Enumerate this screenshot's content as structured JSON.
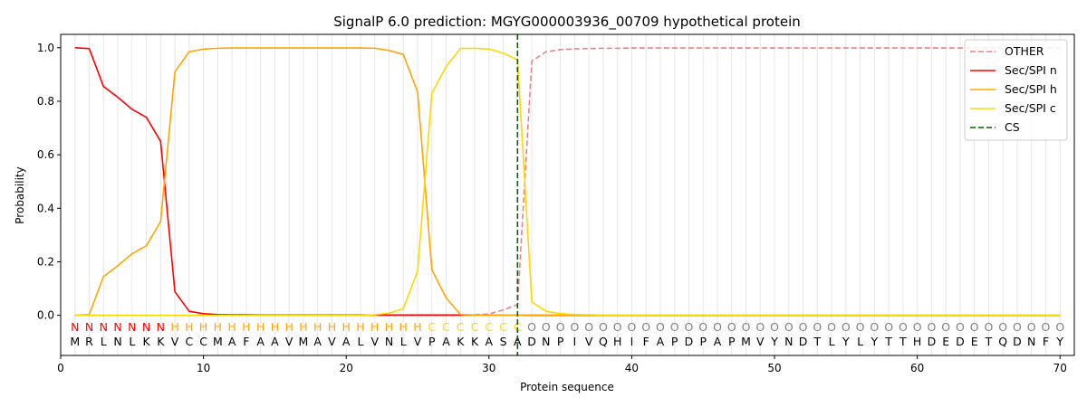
{
  "chart_data": {
    "type": "line",
    "title": "SignalP 6.0 prediction: MGYG000003936_00709 hypothetical protein",
    "xlabel": "Protein sequence",
    "ylabel": "Probability",
    "xlim": [
      0,
      71
    ],
    "ylim": [
      -0.15,
      1.05
    ],
    "xticks": [
      0,
      10,
      20,
      30,
      40,
      50,
      60,
      70
    ],
    "yticks": [
      0.0,
      0.2,
      0.4,
      0.6,
      0.8,
      1.0
    ],
    "legend_position": "top-right",
    "x": [
      1,
      2,
      3,
      4,
      5,
      6,
      7,
      8,
      9,
      10,
      11,
      12,
      13,
      14,
      15,
      16,
      17,
      18,
      19,
      20,
      21,
      22,
      23,
      24,
      25,
      26,
      27,
      28,
      29,
      30,
      31,
      32,
      33,
      34,
      35,
      36,
      37,
      38,
      39,
      40,
      41,
      42,
      43,
      44,
      45,
      46,
      47,
      48,
      49,
      50,
      51,
      52,
      53,
      54,
      55,
      56,
      57,
      58,
      59,
      60,
      61,
      62,
      63,
      64,
      65,
      66,
      67,
      68,
      69,
      70
    ],
    "sequence": [
      "M",
      "R",
      "L",
      "N",
      "L",
      "K",
      "K",
      "V",
      "C",
      "C",
      "M",
      "A",
      "F",
      "A",
      "A",
      "V",
      "M",
      "A",
      "V",
      "A",
      "L",
      "V",
      "N",
      "L",
      "V",
      "P",
      "A",
      "K",
      "K",
      "A",
      "S",
      "A",
      "D",
      "N",
      "P",
      "I",
      "V",
      "Q",
      "H",
      "I",
      "F",
      "A",
      "P",
      "D",
      "P",
      "A",
      "P",
      "M",
      "V",
      "Y",
      "N",
      "D",
      "T",
      "L",
      "Y",
      "L",
      "Y",
      "T",
      "T",
      "H",
      "D",
      "E",
      "D",
      "E",
      "T",
      "Q",
      "D",
      "N",
      "F",
      "Y"
    ],
    "region_labels": [
      "N",
      "N",
      "N",
      "N",
      "N",
      "N",
      "N",
      "H",
      "H",
      "H",
      "H",
      "H",
      "H",
      "H",
      "H",
      "H",
      "H",
      "H",
      "H",
      "H",
      "H",
      "H",
      "H",
      "H",
      "H",
      "C",
      "C",
      "C",
      "C",
      "C",
      "C",
      "C",
      "O",
      "O",
      "O",
      "O",
      "O",
      "O",
      "O",
      "O",
      "O",
      "O",
      "O",
      "O",
      "O",
      "O",
      "O",
      "O",
      "O",
      "O",
      "O",
      "O",
      "O",
      "O",
      "O",
      "O",
      "O",
      "O",
      "O",
      "O",
      "O",
      "O",
      "O",
      "O",
      "O",
      "O",
      "O",
      "O",
      "O",
      "O"
    ],
    "region_colors": {
      "N": "#ff0000",
      "H": "#ffa500",
      "C": "#ffd700",
      "O": "#808080"
    },
    "series": [
      {
        "name": "OTHER",
        "color": "#f08080",
        "style": "dashed",
        "values": [
          0,
          0,
          0,
          0,
          0,
          0,
          0,
          0,
          0,
          0,
          0,
          0,
          0,
          0,
          0,
          0,
          0,
          0,
          0,
          0,
          0,
          0,
          0,
          0,
          0,
          0,
          0,
          0,
          0.002,
          0.005,
          0.02,
          0.04,
          0.95,
          0.985,
          0.993,
          0.996,
          0.997,
          0.998,
          0.998,
          0.999,
          0.999,
          0.999,
          0.999,
          0.999,
          0.999,
          0.999,
          0.999,
          0.999,
          0.999,
          0.999,
          0.999,
          0.999,
          0.999,
          0.999,
          0.999,
          0.999,
          0.999,
          0.999,
          0.999,
          0.999,
          0.999,
          0.999,
          0.999,
          0.999,
          0.999,
          0.999,
          0.999,
          0.999,
          0.999,
          0.999
        ]
      },
      {
        "name": "Sec/SPI n",
        "color": "#ff0000",
        "style": "solid",
        "values": [
          1.0,
          0.997,
          0.855,
          0.815,
          0.77,
          0.74,
          0.65,
          0.088,
          0.015,
          0.006,
          0.003,
          0.002,
          0.002,
          0.001,
          0.001,
          0.001,
          0.001,
          0.001,
          0.001,
          0.001,
          0.001,
          0.001,
          0.001,
          0.001,
          0.001,
          0.001,
          0.001,
          0.001,
          0.001,
          0.001,
          0.001,
          0.001,
          0,
          0,
          0,
          0,
          0,
          0,
          0,
          0,
          0,
          0,
          0,
          0,
          0,
          0,
          0,
          0,
          0,
          0,
          0,
          0,
          0,
          0,
          0,
          0,
          0,
          0,
          0,
          0,
          0,
          0,
          0,
          0,
          0,
          0,
          0,
          0,
          0,
          0
        ]
      },
      {
        "name": "Sec/SPI h",
        "color": "#ffa500",
        "style": "solid",
        "values": [
          0,
          0.003,
          0.145,
          0.185,
          0.23,
          0.26,
          0.35,
          0.91,
          0.985,
          0.995,
          0.998,
          0.999,
          0.999,
          0.999,
          0.999,
          0.999,
          0.999,
          0.999,
          0.999,
          0.999,
          0.999,
          0.998,
          0.99,
          0.975,
          0.835,
          0.17,
          0.065,
          0.003,
          0.001,
          0.001,
          0.001,
          0.001,
          0.001,
          0.001,
          0.001,
          0.001,
          0.001,
          0.001,
          0.001,
          0.001,
          0.001,
          0.001,
          0.001,
          0.001,
          0.001,
          0.001,
          0.001,
          0.001,
          0.001,
          0.001,
          0.001,
          0.001,
          0.001,
          0.001,
          0.001,
          0.001,
          0.001,
          0.001,
          0.001,
          0.001,
          0.001,
          0.001,
          0.001,
          0.001,
          0.001,
          0.001,
          0.001,
          0.001,
          0.001,
          0.001
        ]
      },
      {
        "name": "Sec/SPI c",
        "color": "#ffd700",
        "style": "solid",
        "values": [
          0,
          0,
          0,
          0,
          0,
          0,
          0,
          0,
          0,
          0,
          0,
          0,
          0,
          0,
          0,
          0,
          0,
          0,
          0,
          0,
          0,
          0.002,
          0.008,
          0.025,
          0.165,
          0.83,
          0.93,
          0.997,
          0.998,
          0.995,
          0.98,
          0.955,
          0.05,
          0.015,
          0.006,
          0.003,
          0.002,
          0.001,
          0.001,
          0.001,
          0.001,
          0.001,
          0.001,
          0.001,
          0.001,
          0.001,
          0.001,
          0.001,
          0.001,
          0.001,
          0.001,
          0.001,
          0.001,
          0.001,
          0.001,
          0.001,
          0.001,
          0.001,
          0.001,
          0.001,
          0.001,
          0.001,
          0.001,
          0.001,
          0.001,
          0.001,
          0.001,
          0.001,
          0.001,
          0.001
        ]
      }
    ],
    "cs": {
      "name": "CS",
      "x": 32,
      "color": "#006400",
      "style": "dashed"
    }
  }
}
